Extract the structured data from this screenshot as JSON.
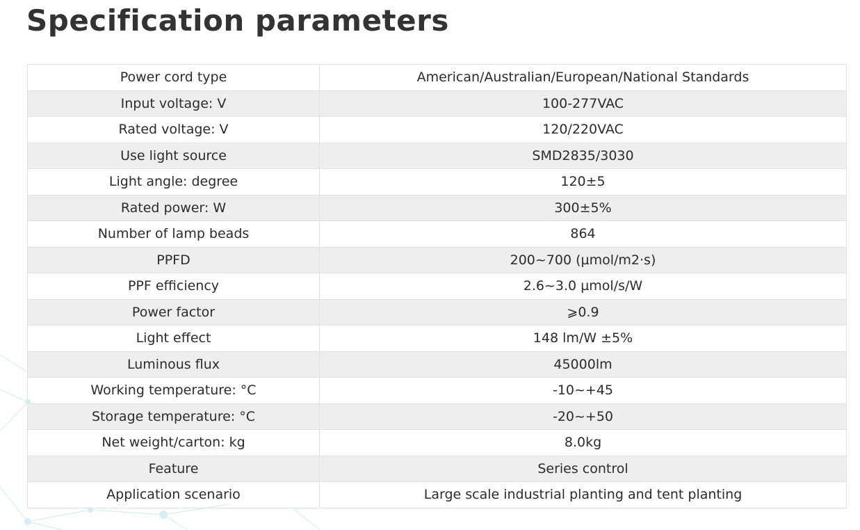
{
  "page": {
    "title": "Specification parameters"
  },
  "colors": {
    "row_shade": "#eeeeee",
    "border": "#e2e2e2",
    "text": "#2b2b2b",
    "network_lines": "#d6eef3"
  },
  "specs": [
    {
      "label": "Power cord type",
      "value": "American/Australian/European/National Standards"
    },
    {
      "label": "Input voltage: V",
      "value": "100-277VAC"
    },
    {
      "label": "Rated voltage: V",
      "value": "120/220VAC"
    },
    {
      "label": "Use light source",
      "value": "SMD2835/3030"
    },
    {
      "label": "Light angle: degree",
      "value": "120±5"
    },
    {
      "label": "Rated power: W",
      "value": "300±5%"
    },
    {
      "label": "Number of lamp beads",
      "value": "864"
    },
    {
      "label": "PPFD",
      "value": "200~700 (µmol/m2·s)"
    },
    {
      "label": "PPF efficiency",
      "value": "2.6~3.0 µmol/s/W"
    },
    {
      "label": "Power factor",
      "value": "⩾0.9"
    },
    {
      "label": "Light effect",
      "value": "148 lm/W ±5%"
    },
    {
      "label": "Luminous flux",
      "value": "45000lm"
    },
    {
      "label": "Working temperature: °C",
      "value": "-10~+45"
    },
    {
      "label": "Storage temperature: °C",
      "value": "-20~+50"
    },
    {
      "label": "Net weight/carton: kg",
      "value": "8.0kg"
    },
    {
      "label": "Feature",
      "value": "Series control"
    },
    {
      "label": "Application scenario",
      "value": "Large scale industrial planting and tent planting"
    }
  ]
}
